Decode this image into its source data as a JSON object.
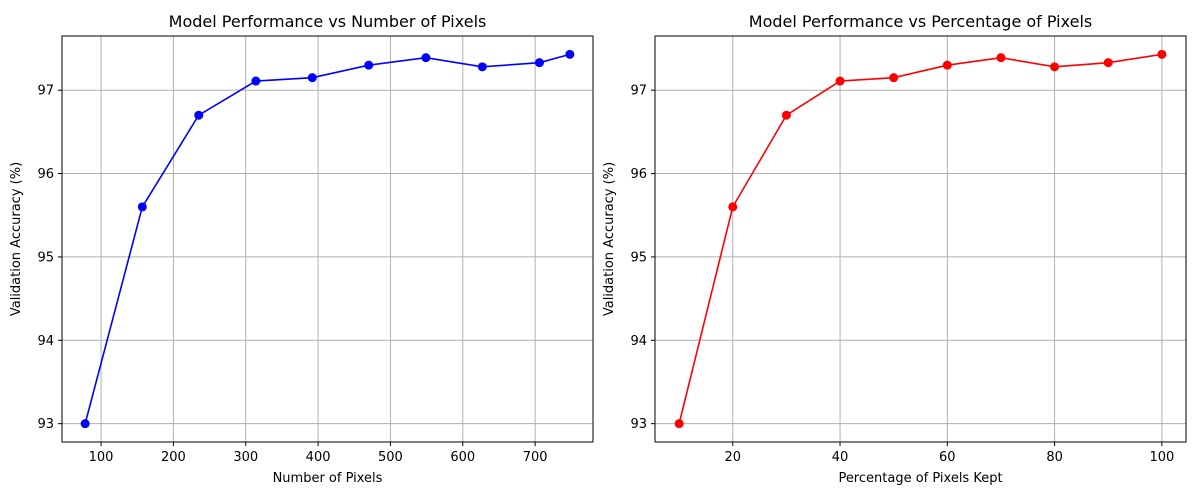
{
  "chart_data": [
    {
      "type": "line",
      "title": "Model Performance vs Number of Pixels",
      "xlabel": "Number of Pixels",
      "ylabel": "Validation Accuracy (%)",
      "xlim": [
        46,
        780
      ],
      "ylim": [
        92.78,
        97.65
      ],
      "xticks": [
        100,
        200,
        300,
        400,
        500,
        600,
        700
      ],
      "yticks": [
        93,
        94,
        95,
        96,
        97
      ],
      "grid": true,
      "series": [
        {
          "color": "#0000ff",
          "marker": "circle",
          "x": [
            78,
            157,
            235,
            314,
            392,
            470,
            549,
            627,
            706,
            748
          ],
          "y": [
            93.0,
            95.6,
            96.7,
            97.11,
            97.15,
            97.3,
            97.39,
            97.28,
            97.33,
            97.43
          ]
        }
      ]
    },
    {
      "type": "line",
      "title": "Model Performance vs Percentage of Pixels",
      "xlabel": "Percentage of Pixels Kept",
      "ylabel": "Validation Accuracy (%)",
      "xlim": [
        5.5,
        104.5
      ],
      "ylim": [
        92.78,
        97.65
      ],
      "xticks": [
        20,
        40,
        60,
        80,
        100
      ],
      "yticks": [
        93,
        94,
        95,
        96,
        97
      ],
      "grid": true,
      "series": [
        {
          "color": "#ff0000",
          "marker": "circle",
          "x": [
            10,
            20,
            30,
            40,
            50,
            60,
            70,
            80,
            90,
            100
          ],
          "y": [
            93.0,
            95.6,
            96.7,
            97.11,
            97.15,
            97.3,
            97.39,
            97.28,
            97.33,
            97.43
          ]
        }
      ]
    }
  ]
}
